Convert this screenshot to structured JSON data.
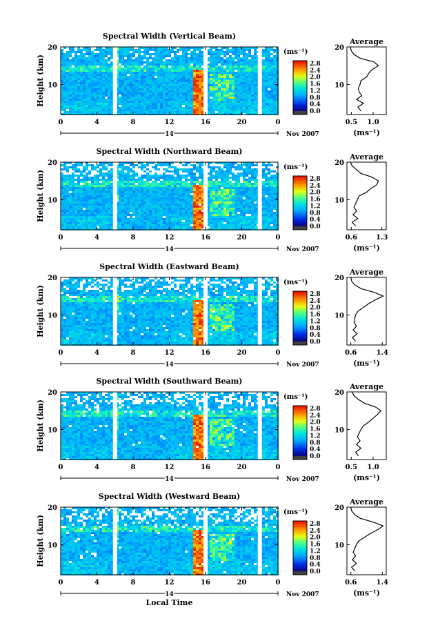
{
  "chart_data": [
    {
      "type": "heatmap",
      "title": "Spectral Width (Vertical Beam)",
      "ylabel": "Height (km)",
      "xlim": [
        0,
        24
      ],
      "ylim": [
        2,
        20
      ],
      "x_ticks": [
        "0",
        "4",
        "8",
        "12",
        "16",
        "20",
        "0"
      ],
      "y_ticks": [
        "10",
        "20"
      ],
      "date_label": "14",
      "date_suffix": "Nov 2007",
      "missing_data_hours": [
        6,
        16,
        22
      ],
      "colorbar": {
        "unit": "(ms⁻¹)",
        "range": [
          0.0,
          2.8
        ],
        "ticks": [
          "2.8",
          "2.4",
          "2.0",
          "1.6",
          "1.2",
          "0.8",
          "0.4",
          "0.0"
        ]
      },
      "average_profile": {
        "title": "Average",
        "xlabel": "(ms⁻¹)",
        "x_ticks": [
          "0.5",
          "1.0"
        ],
        "xlim": [
          0.4,
          1.3
        ],
        "y_ticks": [
          "10",
          "20"
        ],
        "heights": [
          3,
          4,
          5,
          6,
          7,
          8,
          9,
          10,
          11,
          12,
          13,
          14,
          15,
          16,
          17,
          18,
          19,
          20
        ],
        "values": [
          0.72,
          0.65,
          0.78,
          0.62,
          0.74,
          0.68,
          0.66,
          0.7,
          0.72,
          0.85,
          0.9,
          0.98,
          1.12,
          1.02,
          0.7,
          0.56,
          0.5,
          0.48
        ]
      }
    },
    {
      "type": "heatmap",
      "title": "Spectral Width (Northward Beam)",
      "ylabel": "Height (km)",
      "xlim": [
        0,
        24
      ],
      "ylim": [
        2,
        20
      ],
      "x_ticks": [
        "0",
        "4",
        "8",
        "12",
        "16",
        "20",
        "0"
      ],
      "y_ticks": [
        "10",
        "20"
      ],
      "date_label": "14",
      "date_suffix": "Nov 2007",
      "missing_data_hours": [
        6,
        16,
        22
      ],
      "colorbar": {
        "unit": "(ms⁻¹)",
        "range": [
          0.0,
          2.8
        ],
        "ticks": [
          "2.8",
          "2.4",
          "2.0",
          "1.6",
          "1.2",
          "0.8",
          "0.4",
          "0.0"
        ]
      },
      "average_profile": {
        "title": "Average",
        "xlabel": "(ms⁻¹)",
        "x_ticks": [
          "0.6",
          "1.3"
        ],
        "xlim": [
          0.5,
          1.4
        ],
        "y_ticks": [
          "10",
          "20"
        ],
        "heights": [
          3,
          4,
          5,
          6,
          7,
          8,
          9,
          10,
          11,
          12,
          13,
          14,
          15,
          16,
          17,
          18,
          19,
          20
        ],
        "values": [
          0.7,
          0.62,
          0.75,
          0.64,
          0.72,
          0.66,
          0.7,
          0.74,
          0.78,
          0.95,
          1.05,
          1.18,
          1.22,
          1.08,
          0.82,
          0.72,
          0.62,
          0.58
        ]
      }
    },
    {
      "type": "heatmap",
      "title": "Spectral Width (Eastward Beam)",
      "ylabel": "Height (km)",
      "xlim": [
        0,
        24
      ],
      "ylim": [
        2,
        20
      ],
      "x_ticks": [
        "0",
        "4",
        "8",
        "12",
        "16",
        "20",
        "0"
      ],
      "y_ticks": [
        "10",
        "20"
      ],
      "date_label": "14",
      "date_suffix": "Nov 2007",
      "missing_data_hours": [
        6,
        16,
        22
      ],
      "colorbar": {
        "unit": "(ms⁻¹)",
        "range": [
          0.0,
          2.8
        ],
        "ticks": [
          "2.8",
          "2.4",
          "2.0",
          "1.6",
          "1.2",
          "0.8",
          "0.4",
          "0.0"
        ]
      },
      "average_profile": {
        "title": "Average",
        "xlabel": "(ms⁻¹)",
        "x_ticks": [
          "0.6",
          "1.4"
        ],
        "xlim": [
          0.5,
          1.5
        ],
        "y_ticks": [
          "10",
          "20"
        ],
        "heights": [
          3,
          4,
          5,
          6,
          7,
          8,
          9,
          10,
          11,
          12,
          13,
          14,
          15,
          16,
          17,
          18,
          19,
          20
        ],
        "values": [
          0.72,
          0.64,
          0.76,
          0.66,
          0.74,
          0.68,
          0.7,
          0.72,
          0.78,
          0.92,
          1.05,
          1.22,
          1.42,
          1.2,
          0.86,
          0.7,
          0.62,
          0.6
        ]
      }
    },
    {
      "type": "heatmap",
      "title": "Spectral Width (Southward Beam)",
      "ylabel": "Height (km)",
      "xlim": [
        0,
        24
      ],
      "ylim": [
        2,
        20
      ],
      "x_ticks": [
        "0",
        "4",
        "8",
        "12",
        "16",
        "20",
        "0"
      ],
      "y_ticks": [
        "10",
        "20"
      ],
      "date_label": "14",
      "date_suffix": "Nov 2007",
      "missing_data_hours": [
        6,
        16,
        22
      ],
      "colorbar": {
        "unit": "(ms⁻¹)",
        "range": [
          0.0,
          2.8
        ],
        "ticks": [
          "2.8",
          "2.4",
          "2.0",
          "1.6",
          "1.2",
          "0.8",
          "0.4",
          "0.0"
        ]
      },
      "average_profile": {
        "title": "Average",
        "xlabel": "(ms⁻¹)",
        "x_ticks": [
          "0.5",
          "1.0"
        ],
        "xlim": [
          0.4,
          1.3
        ],
        "y_ticks": [
          "10",
          "20"
        ],
        "heights": [
          3,
          4,
          5,
          6,
          7,
          8,
          9,
          10,
          11,
          12,
          13,
          14,
          15,
          16,
          17,
          18,
          19,
          20
        ],
        "values": [
          0.66,
          0.6,
          0.72,
          0.62,
          0.7,
          0.64,
          0.68,
          0.72,
          0.78,
          0.9,
          1.0,
          1.1,
          1.18,
          1.05,
          0.8,
          0.66,
          0.56,
          0.52
        ]
      }
    },
    {
      "type": "heatmap",
      "title": "Spectral Width (Westward Beam)",
      "ylabel": "Height (km)",
      "xlabel": "Local Time",
      "xlim": [
        0,
        24
      ],
      "ylim": [
        2,
        20
      ],
      "x_ticks": [
        "0",
        "4",
        "8",
        "12",
        "16",
        "20",
        "0"
      ],
      "y_ticks": [
        "10",
        "20"
      ],
      "date_label": "14",
      "date_suffix": "Nov 2007",
      "missing_data_hours": [
        6,
        16,
        22
      ],
      "colorbar": {
        "unit": "(ms⁻¹)",
        "range": [
          0.0,
          2.8
        ],
        "ticks": [
          "2.8",
          "2.4",
          "2.0",
          "1.6",
          "1.2",
          "0.8",
          "0.4",
          "0.0"
        ]
      },
      "average_profile": {
        "title": "Average",
        "xlabel": "(ms⁻¹)",
        "x_ticks": [
          "0.6",
          "1.4"
        ],
        "xlim": [
          0.5,
          1.5
        ],
        "y_ticks": [
          "10",
          "20"
        ],
        "heights": [
          3,
          4,
          5,
          6,
          7,
          8,
          9,
          10,
          11,
          12,
          13,
          14,
          15,
          16,
          17,
          18,
          19,
          20
        ],
        "values": [
          0.7,
          0.62,
          0.74,
          0.64,
          0.72,
          0.66,
          0.7,
          0.74,
          0.8,
          0.95,
          1.1,
          1.28,
          1.42,
          1.18,
          0.84,
          0.7,
          0.62,
          0.6
        ]
      }
    }
  ]
}
